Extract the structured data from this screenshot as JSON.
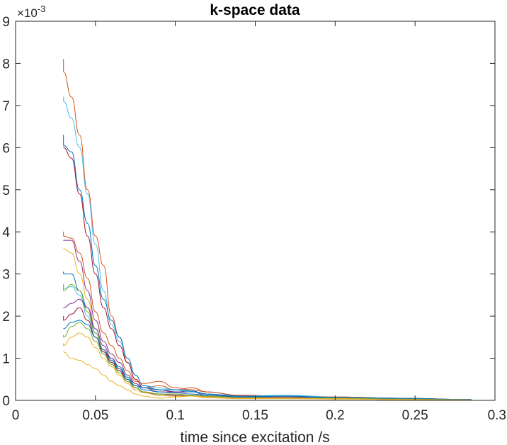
{
  "chart_data": {
    "type": "line",
    "title": "k-space data",
    "xlabel": "time since excitation /s",
    "ylabel": "",
    "y_exponent": "×10",
    "y_exponent_power": "-3",
    "xlim": [
      0,
      0.3
    ],
    "ylim": [
      0,
      9
    ],
    "xticks": [
      0,
      0.05,
      0.1,
      0.15,
      0.2,
      0.25,
      0.3
    ],
    "xtick_labels": [
      "0",
      "0.05",
      "0.1",
      "0.15",
      "0.2",
      "0.25",
      "0.3"
    ],
    "yticks": [
      0,
      1,
      2,
      3,
      4,
      5,
      6,
      7,
      8,
      9
    ],
    "ytick_labels": [
      "0",
      "1",
      "2",
      "3",
      "4",
      "5",
      "6",
      "7",
      "8",
      "9"
    ],
    "grid": false,
    "box": true,
    "series": [
      {
        "color": "#D95319",
        "start": 8.1,
        "x": [
          0.03,
          0.035,
          0.04,
          0.045,
          0.05,
          0.055,
          0.06,
          0.065,
          0.07,
          0.075,
          0.08,
          0.09,
          0.1,
          0.11,
          0.12,
          0.14,
          0.17,
          0.2,
          0.24,
          0.285
        ],
        "y": [
          7.8,
          7.2,
          6.3,
          5.0,
          3.9,
          3.2,
          2.0,
          1.5,
          0.9,
          0.5,
          0.3,
          0.35,
          0.25,
          0.3,
          0.2,
          0.12,
          0.1,
          0.08,
          0.05,
          0.02
        ]
      },
      {
        "color": "#4DBEEE",
        "start": 7.2,
        "x": [
          0.03,
          0.035,
          0.04,
          0.045,
          0.05,
          0.055,
          0.06,
          0.065,
          0.07,
          0.075,
          0.08,
          0.09,
          0.1,
          0.11,
          0.12,
          0.14,
          0.17,
          0.2,
          0.24,
          0.285
        ],
        "y": [
          7.1,
          6.7,
          6.0,
          4.9,
          3.7,
          2.6,
          1.8,
          1.4,
          1.0,
          0.6,
          0.35,
          0.3,
          0.25,
          0.25,
          0.2,
          0.1,
          0.12,
          0.08,
          0.05,
          0.02
        ]
      },
      {
        "color": "#0072BD",
        "start": 6.3,
        "x": [
          0.03,
          0.035,
          0.04,
          0.045,
          0.05,
          0.055,
          0.06,
          0.065,
          0.07,
          0.075,
          0.08,
          0.09,
          0.1,
          0.11,
          0.12,
          0.14,
          0.17,
          0.2,
          0.24,
          0.285
        ],
        "y": [
          6.05,
          5.9,
          5.0,
          4.2,
          3.2,
          2.4,
          1.9,
          1.5,
          1.0,
          0.6,
          0.35,
          0.25,
          0.2,
          0.22,
          0.15,
          0.1,
          0.1,
          0.06,
          0.04,
          0.02
        ]
      },
      {
        "color": "#A2142F",
        "start": 6.0,
        "x": [
          0.03,
          0.035,
          0.04,
          0.045,
          0.05,
          0.055,
          0.06,
          0.065,
          0.07,
          0.075,
          0.08,
          0.09,
          0.1,
          0.11,
          0.12,
          0.14,
          0.17,
          0.2,
          0.24,
          0.285
        ],
        "y": [
          6.0,
          5.75,
          4.9,
          3.9,
          3.0,
          2.2,
          1.7,
          1.3,
          0.9,
          0.5,
          0.3,
          0.2,
          0.2,
          0.2,
          0.15,
          0.08,
          0.08,
          0.05,
          0.03,
          0.01
        ]
      },
      {
        "color": "#D95319",
        "start": 4.0,
        "x": [
          0.03,
          0.035,
          0.04,
          0.045,
          0.05,
          0.055,
          0.06,
          0.065,
          0.07,
          0.075,
          0.08,
          0.09,
          0.1,
          0.11,
          0.12,
          0.14,
          0.17,
          0.2,
          0.24,
          0.285
        ],
        "y": [
          3.9,
          3.85,
          3.5,
          2.9,
          2.1,
          1.6,
          1.3,
          1.0,
          0.7,
          0.45,
          0.4,
          0.45,
          0.3,
          0.25,
          0.2,
          0.12,
          0.1,
          0.08,
          0.05,
          0.02
        ]
      },
      {
        "color": "#7E2F8E",
        "start": 3.8,
        "x": [
          0.03,
          0.035,
          0.04,
          0.045,
          0.05,
          0.055,
          0.06,
          0.065,
          0.07,
          0.075,
          0.08,
          0.09,
          0.1,
          0.11,
          0.12,
          0.14,
          0.17,
          0.2,
          0.24,
          0.285
        ],
        "y": [
          3.8,
          3.8,
          3.3,
          2.6,
          1.9,
          1.4,
          1.1,
          0.9,
          0.6,
          0.4,
          0.3,
          0.25,
          0.2,
          0.2,
          0.12,
          0.08,
          0.08,
          0.05,
          0.03,
          0.01
        ]
      },
      {
        "color": "#EDB120",
        "start": 3.6,
        "x": [
          0.03,
          0.035,
          0.04,
          0.045,
          0.05,
          0.055,
          0.06,
          0.065,
          0.07,
          0.075,
          0.08,
          0.09,
          0.1,
          0.11,
          0.12,
          0.14,
          0.17,
          0.2,
          0.24,
          0.285
        ],
        "y": [
          3.6,
          3.5,
          3.0,
          2.4,
          1.7,
          1.2,
          0.9,
          0.7,
          0.45,
          0.3,
          0.2,
          0.15,
          0.15,
          0.12,
          0.1,
          0.05,
          0.05,
          0.04,
          0.02,
          0.01
        ]
      },
      {
        "color": "#0072BD",
        "start": 3.05,
        "x": [
          0.03,
          0.035,
          0.04,
          0.045,
          0.05,
          0.055,
          0.06,
          0.065,
          0.07,
          0.075,
          0.08,
          0.09,
          0.1,
          0.11,
          0.12,
          0.14,
          0.17,
          0.2,
          0.24,
          0.285
        ],
        "y": [
          3.0,
          3.0,
          2.6,
          2.2,
          1.6,
          1.2,
          1.0,
          0.8,
          0.55,
          0.35,
          0.25,
          0.2,
          0.18,
          0.15,
          0.12,
          0.08,
          0.1,
          0.06,
          0.04,
          0.02
        ]
      },
      {
        "color": "#4DBEEE",
        "start": 2.7,
        "x": [
          0.03,
          0.035,
          0.04,
          0.045,
          0.05,
          0.055,
          0.06,
          0.065,
          0.07,
          0.075,
          0.08,
          0.09,
          0.1,
          0.11,
          0.12,
          0.14,
          0.17,
          0.2,
          0.24,
          0.285
        ],
        "y": [
          2.65,
          2.7,
          2.5,
          2.0,
          1.5,
          1.1,
          0.9,
          0.7,
          0.5,
          0.35,
          0.3,
          0.25,
          0.25,
          0.2,
          0.15,
          0.1,
          0.12,
          0.07,
          0.04,
          0.02
        ]
      },
      {
        "color": "#77AC30",
        "start": 2.75,
        "x": [
          0.03,
          0.035,
          0.04,
          0.045,
          0.05,
          0.055,
          0.06,
          0.065,
          0.07,
          0.075,
          0.08,
          0.09,
          0.1,
          0.11,
          0.12,
          0.14,
          0.17,
          0.2,
          0.24,
          0.285
        ],
        "y": [
          2.6,
          2.75,
          2.6,
          2.1,
          1.6,
          1.2,
          0.95,
          0.7,
          0.5,
          0.3,
          0.2,
          0.15,
          0.12,
          0.12,
          0.1,
          0.06,
          0.06,
          0.05,
          0.03,
          0.01
        ]
      },
      {
        "color": "#7E2F8E",
        "start": 2.2,
        "x": [
          0.03,
          0.035,
          0.04,
          0.045,
          0.05,
          0.055,
          0.06,
          0.065,
          0.07,
          0.075,
          0.08,
          0.09,
          0.1,
          0.11,
          0.12,
          0.14,
          0.17,
          0.2,
          0.24,
          0.285
        ],
        "y": [
          2.2,
          2.3,
          2.4,
          2.2,
          1.7,
          1.3,
          1.0,
          0.75,
          0.5,
          0.3,
          0.2,
          0.15,
          0.12,
          0.12,
          0.1,
          0.06,
          0.06,
          0.05,
          0.03,
          0.01
        ]
      },
      {
        "color": "#A2142F",
        "start": 2.0,
        "x": [
          0.03,
          0.035,
          0.04,
          0.045,
          0.05,
          0.055,
          0.06,
          0.065,
          0.07,
          0.075,
          0.08,
          0.09,
          0.1,
          0.11,
          0.12,
          0.14,
          0.17,
          0.2,
          0.24,
          0.285
        ],
        "y": [
          1.9,
          2.05,
          2.2,
          1.9,
          1.5,
          1.15,
          0.9,
          0.7,
          0.45,
          0.3,
          0.2,
          0.12,
          0.1,
          0.1,
          0.08,
          0.05,
          0.05,
          0.04,
          0.02,
          0.01
        ]
      },
      {
        "color": "#0072BD",
        "start": 1.7,
        "x": [
          0.03,
          0.035,
          0.04,
          0.045,
          0.05,
          0.055,
          0.06,
          0.065,
          0.07,
          0.075,
          0.08,
          0.09,
          0.1,
          0.11,
          0.12,
          0.14,
          0.17,
          0.2,
          0.24,
          0.285
        ],
        "y": [
          1.7,
          1.85,
          1.9,
          1.8,
          1.5,
          1.2,
          0.95,
          0.75,
          0.5,
          0.35,
          0.3,
          0.25,
          0.25,
          0.22,
          0.15,
          0.1,
          0.1,
          0.07,
          0.05,
          0.02
        ]
      },
      {
        "color": "#77AC30",
        "start": 1.55,
        "x": [
          0.03,
          0.035,
          0.04,
          0.045,
          0.05,
          0.055,
          0.06,
          0.065,
          0.07,
          0.075,
          0.08,
          0.09,
          0.1,
          0.11,
          0.12,
          0.14,
          0.17,
          0.2,
          0.24,
          0.285
        ],
        "y": [
          1.5,
          1.75,
          1.85,
          1.7,
          1.4,
          1.1,
          0.85,
          0.65,
          0.45,
          0.3,
          0.2,
          0.15,
          0.15,
          0.12,
          0.1,
          0.06,
          0.06,
          0.05,
          0.03,
          0.01
        ]
      },
      {
        "color": "#EDB120",
        "start": 1.35,
        "x": [
          0.03,
          0.035,
          0.04,
          0.045,
          0.05,
          0.055,
          0.06,
          0.065,
          0.07,
          0.075,
          0.08,
          0.09,
          0.1,
          0.11,
          0.12,
          0.14,
          0.17,
          0.2,
          0.24,
          0.285
        ],
        "y": [
          1.3,
          1.5,
          1.6,
          1.5,
          1.25,
          1.0,
          0.8,
          0.6,
          0.4,
          0.25,
          0.18,
          0.12,
          0.1,
          0.1,
          0.08,
          0.05,
          0.05,
          0.04,
          0.02,
          0.01
        ]
      },
      {
        "color": "#EDB120",
        "start": 1.15,
        "x": [
          0.03,
          0.035,
          0.04,
          0.045,
          0.05,
          0.055,
          0.06,
          0.065,
          0.07,
          0.075,
          0.08,
          0.09,
          0.1,
          0.11,
          0.12,
          0.14,
          0.17,
          0.2,
          0.24,
          0.285
        ],
        "y": [
          1.15,
          1.0,
          0.95,
          0.85,
          0.75,
          0.6,
          0.45,
          0.35,
          0.25,
          0.15,
          0.1,
          0.05,
          0.08,
          0.1,
          0.06,
          0.04,
          0.04,
          0.03,
          0.02,
          0.01
        ]
      }
    ]
  }
}
